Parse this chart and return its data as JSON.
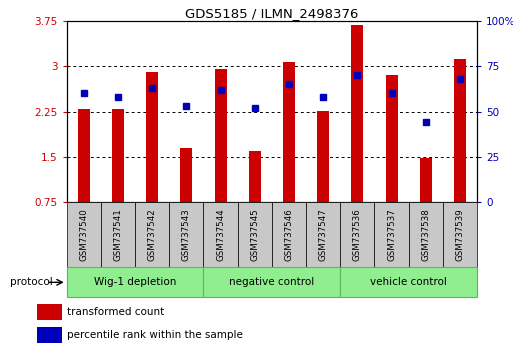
{
  "title": "GDS5185 / ILMN_2498376",
  "samples": [
    "GSM737540",
    "GSM737541",
    "GSM737542",
    "GSM737543",
    "GSM737544",
    "GSM737545",
    "GSM737546",
    "GSM737547",
    "GSM737536",
    "GSM737537",
    "GSM737538",
    "GSM737539"
  ],
  "red_values": [
    2.3,
    2.29,
    2.91,
    1.65,
    2.95,
    1.6,
    3.07,
    2.26,
    3.68,
    2.86,
    1.48,
    3.12
  ],
  "blue_values": [
    60,
    58,
    63,
    53,
    62,
    52,
    65,
    58,
    70,
    60,
    44,
    68
  ],
  "groups": [
    {
      "label": "Wig-1 depletion",
      "start": 0,
      "end": 3
    },
    {
      "label": "negative control",
      "start": 4,
      "end": 7
    },
    {
      "label": "vehicle control",
      "start": 8,
      "end": 11
    }
  ],
  "ylim_left": [
    0.75,
    3.75
  ],
  "ylim_right": [
    0,
    100
  ],
  "yticks_left": [
    0.75,
    1.5,
    2.25,
    3.0,
    3.75
  ],
  "yticks_right": [
    0,
    25,
    50,
    75,
    100
  ],
  "ytick_labels_left": [
    "0.75",
    "1.5",
    "2.25",
    "3",
    "3.75"
  ],
  "ytick_labels_right": [
    "0",
    "25",
    "50",
    "75",
    "100%"
  ],
  "bar_color": "#CC0000",
  "dot_color": "#0000BB",
  "group_bg_color": "#90EE90",
  "group_border_color": "#55BB55",
  "sample_bg_color": "#C8C8C8",
  "legend_red_label": "transformed count",
  "legend_blue_label": "percentile rank within the sample",
  "protocol_label": "protocol"
}
